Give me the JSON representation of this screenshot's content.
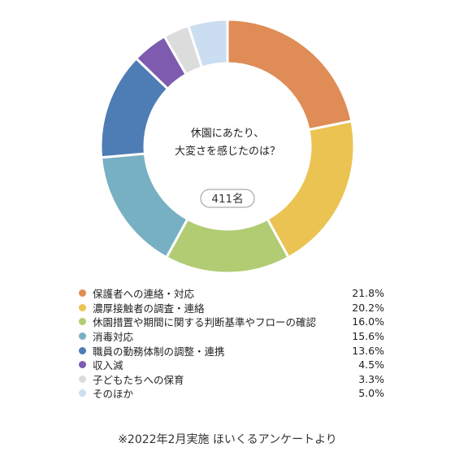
{
  "chart_data": {
    "type": "pie",
    "title": "休園にあたり、大変さを感じたのは？",
    "title_lines": [
      "休園にあたり、",
      "大変さを感じたのは？"
    ],
    "count_label": "411名",
    "donut": true,
    "slices": [
      {
        "label": "保護者への連絡・対応",
        "value": 21.8,
        "display": "21.8%",
        "color": "#E08C56"
      },
      {
        "label": "濃厚接触者の調査・連絡",
        "value": 20.2,
        "display": "20.2%",
        "color": "#EBC352"
      },
      {
        "label": "休園措置や期間に関する判断基準やフローの確認",
        "value": 16.0,
        "display": "16.0%",
        "color": "#B1CC73"
      },
      {
        "label": "消毒対応",
        "value": 15.6,
        "display": "15.6%",
        "color": "#78B0C3"
      },
      {
        "label": "職員の勤務体制の調整・連携",
        "value": 13.6,
        "display": "13.6%",
        "color": "#4E7CB4"
      },
      {
        "label": "収入減",
        "value": 4.5,
        "display": "4.5%",
        "color": "#7E5BAE"
      },
      {
        "label": "子どもたちへの保育",
        "value": 3.3,
        "display": "3.3%",
        "color": "#DCDCDC"
      },
      {
        "label": "そのほか",
        "value": 5.0,
        "display": "5.0%",
        "color": "#CBDDF0"
      }
    ]
  },
  "footnote": "※2022年2月実施 ほいくるアンケートより"
}
